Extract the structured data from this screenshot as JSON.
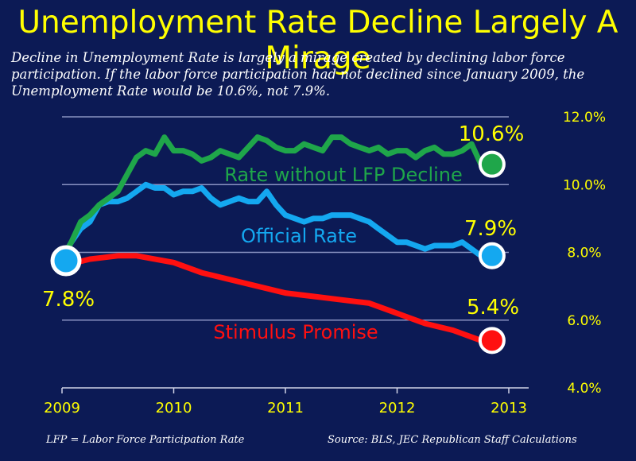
{
  "title": "Unemployment Rate Decline Largely A Mirage",
  "subtitle": "Decline in Unemployment Rate is largely a mirage created by declining labor force participation.  If the labor force participation had not declined since January 2009, the Unemployment Rate would be 10.6%, not 7.9%.",
  "footnote_left": "LFP = Labor Force Participation Rate",
  "footnote_right": "Source:  BLS, JEC Republican Staff Calculations",
  "colors": {
    "background": "#0c1a55",
    "title": "#ffff00",
    "grid": "#8a93c2",
    "tick_text": "#ffff00",
    "lfp": "#1fa64a",
    "official": "#14a8f0",
    "stimulus": "#ff1010"
  },
  "chart_data": {
    "type": "line",
    "title": "Unemployment Rate Decline Largely A Mirage",
    "xlabel": "",
    "ylabel": "",
    "xlim": [
      2009,
      2013
    ],
    "ylim": [
      4.0,
      12.0
    ],
    "x_ticks": [
      2009,
      2010,
      2011,
      2012,
      2013
    ],
    "x_tick_labels": [
      "2009",
      "2010",
      "2011",
      "2012",
      "2013"
    ],
    "y_ticks": [
      4.0,
      6.0,
      8.0,
      10.0,
      12.0
    ],
    "y_tick_labels": [
      "4.0%",
      "6.0%",
      "8.0%",
      "10.0%",
      "12.0%"
    ],
    "grid": true,
    "series": [
      {
        "name": "Rate without LFP Decline",
        "key": "lfp",
        "x": [
          2009.0,
          2009.083,
          2009.167,
          2009.25,
          2009.333,
          2009.417,
          2009.5,
          2009.583,
          2009.667,
          2009.75,
          2009.833,
          2009.917,
          2010.0,
          2010.083,
          2010.167,
          2010.25,
          2010.333,
          2010.417,
          2010.5,
          2010.583,
          2010.667,
          2010.75,
          2010.833,
          2010.917,
          2011.0,
          2011.083,
          2011.167,
          2011.25,
          2011.333,
          2011.417,
          2011.5,
          2011.583,
          2011.667,
          2011.75,
          2011.833,
          2011.917,
          2012.0,
          2012.083,
          2012.167,
          2012.25,
          2012.333,
          2012.417,
          2012.5,
          2012.583,
          2012.667,
          2012.75
        ],
        "values": [
          7.8,
          8.3,
          8.9,
          9.1,
          9.4,
          9.6,
          9.8,
          10.3,
          10.8,
          11.0,
          10.9,
          11.4,
          11.0,
          11.0,
          10.9,
          10.7,
          10.8,
          11.0,
          10.9,
          10.8,
          11.1,
          11.4,
          11.3,
          11.1,
          11.0,
          11.0,
          11.2,
          11.1,
          11.0,
          11.4,
          11.4,
          11.2,
          11.1,
          11.0,
          11.1,
          10.9,
          11.0,
          11.0,
          10.8,
          11.0,
          11.1,
          10.9,
          10.9,
          11.0,
          11.2,
          10.6
        ],
        "end_label": "10.6%"
      },
      {
        "name": "Official Rate",
        "key": "official",
        "x": [
          2009.0,
          2009.083,
          2009.167,
          2009.25,
          2009.333,
          2009.417,
          2009.5,
          2009.583,
          2009.667,
          2009.75,
          2009.833,
          2009.917,
          2010.0,
          2010.083,
          2010.167,
          2010.25,
          2010.333,
          2010.417,
          2010.5,
          2010.583,
          2010.667,
          2010.75,
          2010.833,
          2010.917,
          2011.0,
          2011.083,
          2011.167,
          2011.25,
          2011.333,
          2011.417,
          2011.5,
          2011.583,
          2011.667,
          2011.75,
          2011.833,
          2011.917,
          2012.0,
          2012.083,
          2012.167,
          2012.25,
          2012.333,
          2012.417,
          2012.5,
          2012.583,
          2012.667,
          2012.75
        ],
        "values": [
          7.8,
          8.3,
          8.7,
          8.9,
          9.4,
          9.5,
          9.5,
          9.6,
          9.8,
          10.0,
          9.9,
          9.9,
          9.7,
          9.8,
          9.8,
          9.9,
          9.6,
          9.4,
          9.5,
          9.6,
          9.5,
          9.5,
          9.8,
          9.4,
          9.1,
          9.0,
          8.9,
          9.0,
          9.0,
          9.1,
          9.1,
          9.1,
          9.0,
          8.9,
          8.7,
          8.5,
          8.3,
          8.3,
          8.2,
          8.1,
          8.2,
          8.2,
          8.2,
          8.3,
          8.1,
          7.9
        ],
        "end_label": "7.9%"
      },
      {
        "name": "Stimulus Promise",
        "key": "stimulus",
        "x": [
          2009.0,
          2009.25,
          2009.5,
          2009.667,
          2009.75,
          2010.0,
          2010.25,
          2010.5,
          2010.75,
          2011.0,
          2011.25,
          2011.5,
          2011.75,
          2012.0,
          2012.25,
          2012.5,
          2012.75
        ],
        "values": [
          7.6,
          7.8,
          7.9,
          7.9,
          7.85,
          7.7,
          7.4,
          7.2,
          7.0,
          6.8,
          6.7,
          6.6,
          6.5,
          6.2,
          5.9,
          5.7,
          5.4
        ],
        "end_label": "5.4%"
      }
    ],
    "start_label": "7.8%",
    "start_point": {
      "x": 2009.0,
      "y": 7.8
    }
  }
}
